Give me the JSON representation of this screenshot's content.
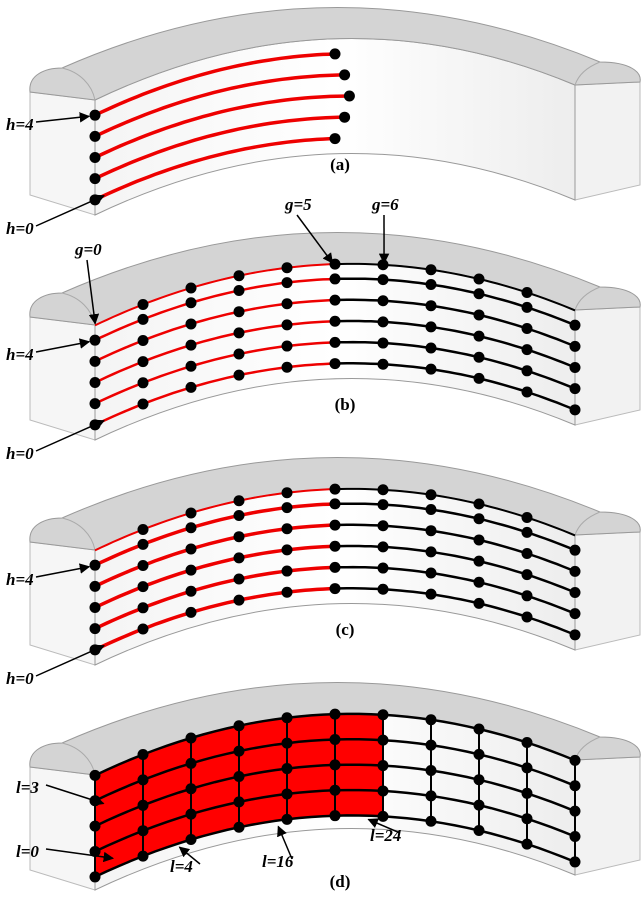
{
  "panels": [
    {
      "label": "(a)",
      "annotations": [
        "h=4",
        "h=0"
      ]
    },
    {
      "label": "(b)",
      "annotations": [
        "g=0",
        "g=5",
        "g=6",
        "h=4",
        "h=0"
      ]
    },
    {
      "label": "(c)",
      "annotations": [
        "h=4",
        "h=0"
      ]
    },
    {
      "label": "(d)",
      "annotations": [
        "l=3",
        "l=0",
        "l=4",
        "l=16",
        "l=24"
      ]
    }
  ]
}
